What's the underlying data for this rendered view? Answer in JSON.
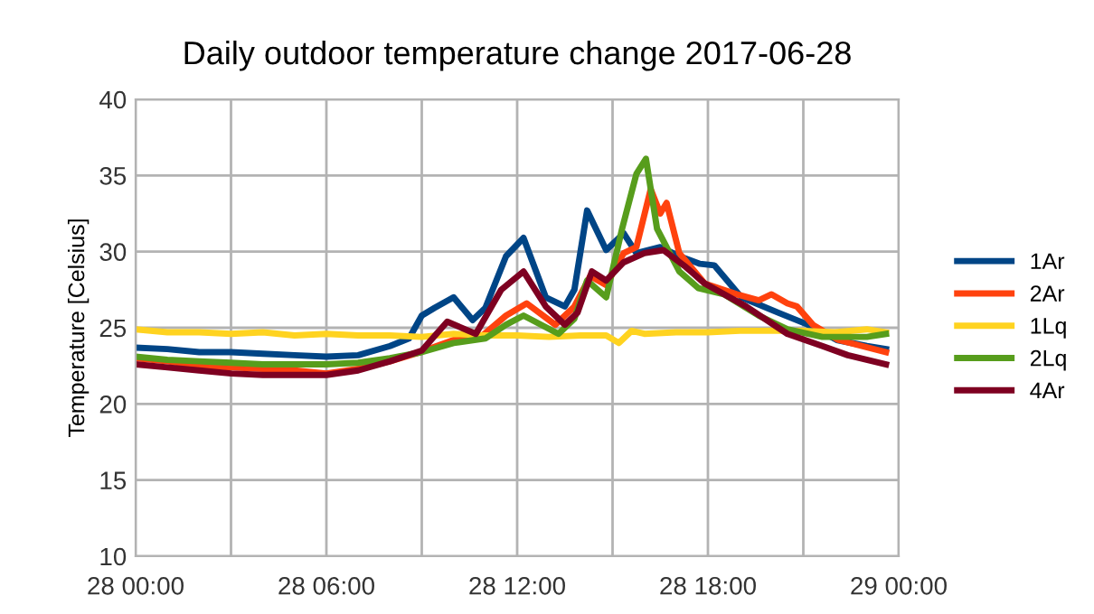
{
  "chart_data": {
    "type": "line",
    "title": "Daily outdoor temperature change 2017-06-28",
    "ylabel": "Temperature [Celsius]",
    "xlim": [
      "2017-06-28T00:00",
      "2017-06-29T00:00"
    ],
    "xticks": [
      {
        "value": "2017-06-28T00:00",
        "label": "28 00:00"
      },
      {
        "value": "2017-06-28T03:00",
        "label": null
      },
      {
        "value": "2017-06-28T06:00",
        "label": "28 06:00"
      },
      {
        "value": "2017-06-28T09:00",
        "label": null
      },
      {
        "value": "2017-06-28T12:00",
        "label": "28 12:00"
      },
      {
        "value": "2017-06-28T15:00",
        "label": null
      },
      {
        "value": "2017-06-28T18:00",
        "label": "28 18:00"
      },
      {
        "value": "2017-06-28T21:00",
        "label": null
      },
      {
        "value": "2017-06-29T00:00",
        "label": "29 00:00"
      }
    ],
    "ylim": [
      10,
      40
    ],
    "yticks": [
      10,
      15,
      20,
      25,
      30,
      35,
      40
    ],
    "grid": true,
    "legend": "right",
    "marker": "none",
    "line_style": "solid",
    "series": [
      {
        "name": "1Ar",
        "color": "#004586",
        "x": [
          "2017-06-28T00:00",
          "2017-06-28T01:00",
          "2017-06-28T02:00",
          "2017-06-28T03:00",
          "2017-06-28T04:00",
          "2017-06-28T05:00",
          "2017-06-28T06:00",
          "2017-06-28T07:00",
          "2017-06-28T08:00",
          "2017-06-28T08:36",
          "2017-06-28T09:00",
          "2017-06-28T09:24",
          "2017-06-28T10:00",
          "2017-06-28T10:36",
          "2017-06-28T11:00",
          "2017-06-28T11:39",
          "2017-06-28T12:12",
          "2017-06-28T12:54",
          "2017-06-28T13:30",
          "2017-06-28T13:48",
          "2017-06-28T14:12",
          "2017-06-28T14:48",
          "2017-06-28T15:21",
          "2017-06-28T15:45",
          "2017-06-28T16:30",
          "2017-06-28T17:06",
          "2017-06-28T17:45",
          "2017-06-28T18:12",
          "2017-06-28T19:03",
          "2017-06-28T20:12",
          "2017-06-28T21:09",
          "2017-06-28T22:03",
          "2017-06-28T23:00",
          "2017-06-28T23:36"
        ],
        "values": [
          23.7,
          23.6,
          23.4,
          23.4,
          23.3,
          23.2,
          23.1,
          23.2,
          23.8,
          24.3,
          25.8,
          26.3,
          27.0,
          25.5,
          26.3,
          29.7,
          30.9,
          27.0,
          26.4,
          27.5,
          32.7,
          30.1,
          31.2,
          29.9,
          30.3,
          29.7,
          29.2,
          29.1,
          27.0,
          26.0,
          25.2,
          24.2,
          23.8,
          23.6
        ]
      },
      {
        "name": "2Ar",
        "color": "#ff420e",
        "x": [
          "2017-06-28T00:00",
          "2017-06-28T01:00",
          "2017-06-28T02:00",
          "2017-06-28T03:00",
          "2017-06-28T04:00",
          "2017-06-28T05:00",
          "2017-06-28T06:00",
          "2017-06-28T07:00",
          "2017-06-28T08:00",
          "2017-06-28T08:48",
          "2017-06-28T10:00",
          "2017-06-28T10:48",
          "2017-06-28T11:39",
          "2017-06-28T12:18",
          "2017-06-28T13:12",
          "2017-06-28T13:48",
          "2017-06-28T14:18",
          "2017-06-28T14:48",
          "2017-06-28T15:21",
          "2017-06-28T15:45",
          "2017-06-28T16:12",
          "2017-06-28T16:30",
          "2017-06-28T16:42",
          "2017-06-28T17:06",
          "2017-06-28T17:54",
          "2017-06-28T18:54",
          "2017-06-28T19:36",
          "2017-06-28T20:00",
          "2017-06-28T20:30",
          "2017-06-28T20:48",
          "2017-06-28T21:18",
          "2017-06-28T22:06",
          "2017-06-28T23:36"
        ],
        "values": [
          23.0,
          22.8,
          22.5,
          22.4,
          22.3,
          22.2,
          22.0,
          22.3,
          22.8,
          23.3,
          24.2,
          24.3,
          25.8,
          26.6,
          25.2,
          26.4,
          28.4,
          27.8,
          29.9,
          30.3,
          34.1,
          32.5,
          33.2,
          29.9,
          27.9,
          27.2,
          26.8,
          27.2,
          26.6,
          26.4,
          25.2,
          24.2,
          23.4
        ]
      },
      {
        "name": "1Lq",
        "color": "#ffd320",
        "x": [
          "2017-06-28T00:00",
          "2017-06-28T01:00",
          "2017-06-28T02:00",
          "2017-06-28T03:00",
          "2017-06-28T04:00",
          "2017-06-28T05:00",
          "2017-06-28T06:00",
          "2017-06-28T07:00",
          "2017-06-28T08:00",
          "2017-06-28T09:00",
          "2017-06-28T10:00",
          "2017-06-28T11:00",
          "2017-06-28T12:00",
          "2017-06-28T13:00",
          "2017-06-28T14:00",
          "2017-06-28T14:48",
          "2017-06-28T15:12",
          "2017-06-28T15:36",
          "2017-06-28T16:00",
          "2017-06-28T17:00",
          "2017-06-28T18:00",
          "2017-06-28T19:00",
          "2017-06-28T20:00",
          "2017-06-28T21:00",
          "2017-06-28T22:00",
          "2017-06-28T23:00",
          "2017-06-28T23:36"
        ],
        "values": [
          24.9,
          24.7,
          24.7,
          24.6,
          24.7,
          24.5,
          24.6,
          24.5,
          24.5,
          24.4,
          24.6,
          24.5,
          24.5,
          24.4,
          24.5,
          24.5,
          24.0,
          24.8,
          24.6,
          24.7,
          24.7,
          24.8,
          24.8,
          24.8,
          24.7,
          24.9,
          24.7
        ]
      },
      {
        "name": "2Lq",
        "color": "#579d1c",
        "x": [
          "2017-06-28T00:00",
          "2017-06-28T01:00",
          "2017-06-28T02:00",
          "2017-06-28T03:00",
          "2017-06-28T04:00",
          "2017-06-28T05:00",
          "2017-06-28T06:00",
          "2017-06-28T07:00",
          "2017-06-28T08:00",
          "2017-06-28T09:00",
          "2017-06-28T10:00",
          "2017-06-28T11:00",
          "2017-06-28T11:39",
          "2017-06-28T12:12",
          "2017-06-28T13:18",
          "2017-06-28T13:48",
          "2017-06-28T14:12",
          "2017-06-28T14:48",
          "2017-06-28T15:18",
          "2017-06-28T15:45",
          "2017-06-28T16:03",
          "2017-06-28T16:24",
          "2017-06-28T17:06",
          "2017-06-28T17:42",
          "2017-06-28T18:30",
          "2017-06-28T19:36",
          "2017-06-28T20:30",
          "2017-06-28T21:36",
          "2017-06-28T23:00",
          "2017-06-28T23:36"
        ],
        "values": [
          23.1,
          22.9,
          22.8,
          22.7,
          22.6,
          22.6,
          22.6,
          22.7,
          23.0,
          23.4,
          24.0,
          24.3,
          25.2,
          25.8,
          24.6,
          25.6,
          28.1,
          27.0,
          31.5,
          35.1,
          36.1,
          31.5,
          28.7,
          27.6,
          27.2,
          25.8,
          24.9,
          24.4,
          24.4,
          24.6
        ]
      },
      {
        "name": "4Ar",
        "color": "#7e0021",
        "x": [
          "2017-06-28T00:00",
          "2017-06-28T01:00",
          "2017-06-28T02:00",
          "2017-06-28T03:00",
          "2017-06-28T04:00",
          "2017-06-28T05:00",
          "2017-06-28T06:00",
          "2017-06-28T07:00",
          "2017-06-28T08:00",
          "2017-06-28T09:00",
          "2017-06-28T09:48",
          "2017-06-28T10:42",
          "2017-06-28T11:30",
          "2017-06-28T12:12",
          "2017-06-28T12:54",
          "2017-06-28T13:30",
          "2017-06-28T13:54",
          "2017-06-28T14:21",
          "2017-06-28T14:48",
          "2017-06-28T15:21",
          "2017-06-28T16:00",
          "2017-06-28T16:36",
          "2017-06-28T17:18",
          "2017-06-28T17:54",
          "2017-06-28T19:12",
          "2017-06-28T20:30",
          "2017-06-28T21:36",
          "2017-06-28T22:24",
          "2017-06-28T23:36"
        ],
        "values": [
          22.6,
          22.4,
          22.2,
          22.0,
          21.9,
          21.9,
          21.9,
          22.2,
          22.8,
          23.5,
          25.4,
          24.6,
          27.5,
          28.7,
          26.4,
          25.2,
          26.0,
          28.7,
          28.1,
          29.3,
          29.9,
          30.1,
          29.0,
          27.9,
          26.4,
          24.6,
          23.8,
          23.2,
          22.6
        ]
      }
    ]
  }
}
